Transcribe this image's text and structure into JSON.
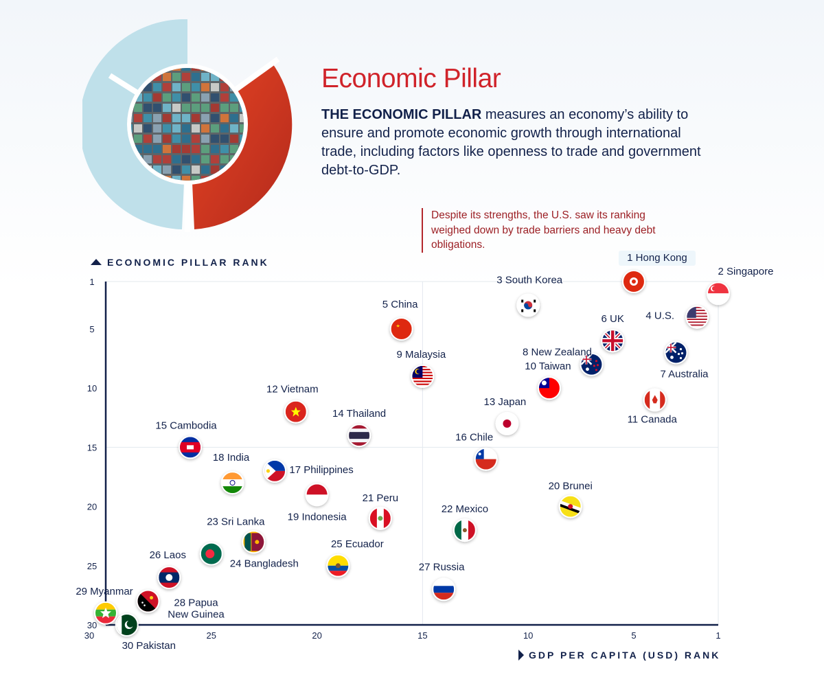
{
  "header": {
    "title": "Economic Pillar",
    "desc_bold": "THE ECONOMIC PILLAR",
    "desc_rest": " measures an economy’s ability to ensure and promote economic growth through international trade, including factors like openness to trade and government debt-to-GDP."
  },
  "note": "Despite its strengths, the U.S. saw its ranking weighed down by trade barriers and heavy debt obligations.",
  "colors": {
    "accent": "#d0232a",
    "navy": "#12214a",
    "donut_light": "#bfe0ea",
    "donut_red": "#c9331f"
  },
  "chart_data": {
    "type": "scatter",
    "xlabel": "GDP PER CAPITA (USD) RANK",
    "ylabel": "ECONOMIC PILLAR RANK",
    "xlim": [
      30,
      1
    ],
    "ylim": [
      30,
      1
    ],
    "x_ticks": [
      "30",
      "25",
      "20",
      "15",
      "10",
      "5",
      "1"
    ],
    "y_ticks": [
      "1",
      "5",
      "10",
      "15",
      "20",
      "25",
      "30"
    ],
    "grid": "mid lines at 15",
    "points": [
      {
        "label": "1 Hong Kong",
        "x": 5,
        "y": 1,
        "flag": "hong-kong-flag"
      },
      {
        "label": "2 Singapore",
        "x": 1,
        "y": 2,
        "flag": "singapore-flag"
      },
      {
        "label": "3 South Korea",
        "x": 10,
        "y": 3,
        "flag": "south-korea-flag"
      },
      {
        "label": "4 U.S.",
        "x": 2,
        "y": 4,
        "flag": "us-flag"
      },
      {
        "label": "5 China",
        "x": 16,
        "y": 5,
        "flag": "china-flag"
      },
      {
        "label": "6 UK",
        "x": 6,
        "y": 6,
        "flag": "uk-flag"
      },
      {
        "label": "7 Australia",
        "x": 3,
        "y": 7,
        "flag": "australia-flag"
      },
      {
        "label": "8 New Zealand",
        "x": 7,
        "y": 8,
        "flag": "new-zealand-flag"
      },
      {
        "label": "9 Malaysia",
        "x": 15,
        "y": 9,
        "flag": "malaysia-flag"
      },
      {
        "label": "10 Taiwan",
        "x": 9,
        "y": 10,
        "flag": "taiwan-flag"
      },
      {
        "label": "11 Canada",
        "x": 4,
        "y": 11,
        "flag": "canada-flag"
      },
      {
        "label": "12 Vietnam",
        "x": 21,
        "y": 12,
        "flag": "vietnam-flag"
      },
      {
        "label": "13 Japan",
        "x": 11,
        "y": 13,
        "flag": "japan-flag"
      },
      {
        "label": "14 Thailand",
        "x": 18,
        "y": 14,
        "flag": "thailand-flag"
      },
      {
        "label": "15 Cambodia",
        "x": 26,
        "y": 15,
        "flag": "cambodia-flag"
      },
      {
        "label": "16 Chile",
        "x": 12,
        "y": 16,
        "flag": "chile-flag"
      },
      {
        "label": "17 Philippines",
        "x": 22,
        "y": 17,
        "flag": "philippines-flag"
      },
      {
        "label": "18 India",
        "x": 24,
        "y": 18,
        "flag": "india-flag"
      },
      {
        "label": "19 Indonesia",
        "x": 20,
        "y": 19,
        "flag": "indonesia-flag"
      },
      {
        "label": "20 Brunei",
        "x": 8,
        "y": 20,
        "flag": "brunei-flag"
      },
      {
        "label": "21 Peru",
        "x": 17,
        "y": 21,
        "flag": "peru-flag"
      },
      {
        "label": "22 Mexico",
        "x": 13,
        "y": 22,
        "flag": "mexico-flag"
      },
      {
        "label": "23 Sri Lanka",
        "x": 23,
        "y": 23,
        "flag": "sri-lanka-flag"
      },
      {
        "label": "24 Bangladesh",
        "x": 25,
        "y": 24,
        "flag": "bangladesh-flag"
      },
      {
        "label": "25 Ecuador",
        "x": 19,
        "y": 25,
        "flag": "ecuador-flag"
      },
      {
        "label": "26 Laos",
        "x": 27,
        "y": 26,
        "flag": "laos-flag"
      },
      {
        "label": "27 Russia",
        "x": 14,
        "y": 27,
        "flag": "russia-flag"
      },
      {
        "label": "28 Papua\nNew Guinea",
        "x": 28,
        "y": 28,
        "flag": "papua-new-guinea-flag"
      },
      {
        "label": "29 Myanmar",
        "x": 30,
        "y": 29,
        "flag": "myanmar-flag"
      },
      {
        "label": "30 Pakistan",
        "x": 29,
        "y": 30,
        "flag": "pakistan-flag"
      }
    ]
  }
}
